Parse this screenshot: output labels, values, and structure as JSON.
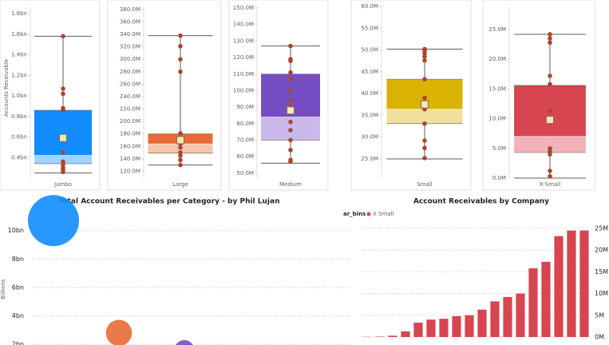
{
  "chart_data": [
    {
      "type": "box",
      "category": "Jumbo",
      "ylabel": "Accounts Receivable",
      "color": "#118dff",
      "light_color": "#a3d2ff",
      "ylim": [
        0.2,
        1.87
      ],
      "yticks": [
        {
          "value": 0.4,
          "label": "0.4bn"
        },
        {
          "value": 0.6,
          "label": "0.6bn"
        },
        {
          "value": 0.8,
          "label": "0.8bn"
        },
        {
          "value": 1.0,
          "label": "1.0bn"
        },
        {
          "value": 1.2,
          "label": "1.2bn"
        },
        {
          "value": 1.4,
          "label": "1.4bn"
        },
        {
          "value": 1.6,
          "label": "1.6bn"
        },
        {
          "value": 1.8,
          "label": "1.8bn"
        }
      ],
      "whisker_low": 0.25,
      "q1": 0.34,
      "median": 0.42,
      "q3": 0.86,
      "whisker_high": 1.58,
      "mean": 0.59,
      "points": [
        1.58,
        1.07,
        1.02,
        0.88,
        0.86,
        0.6,
        0.45,
        0.36,
        0.33,
        0.3,
        0.28,
        0.26
      ]
    },
    {
      "type": "box",
      "category": "Large",
      "color": "#e66c37",
      "light_color": "#f6c4aa",
      "ylim": [
        109,
        385
      ],
      "yticks": [
        {
          "value": 120,
          "label": "120.0M"
        },
        {
          "value": 140,
          "label": "140.0M"
        },
        {
          "value": 160,
          "label": "160.0M"
        },
        {
          "value": 180,
          "label": "180.0M"
        },
        {
          "value": 200,
          "label": "200.0M"
        },
        {
          "value": 220,
          "label": "220.0M"
        },
        {
          "value": 240,
          "label": "240.0M"
        },
        {
          "value": 260,
          "label": "260.0M"
        },
        {
          "value": 280,
          "label": "280.0M"
        },
        {
          "value": 300,
          "label": "300.0M"
        },
        {
          "value": 320,
          "label": "320.0M"
        },
        {
          "value": 340,
          "label": "340.0M"
        },
        {
          "value": 360,
          "label": "360.0M"
        },
        {
          "value": 380,
          "label": "380.0M"
        }
      ],
      "whisker_low": 130,
      "q1": 149,
      "median": 164,
      "q3": 180,
      "whisker_high": 338,
      "mean": 170,
      "points": [
        338,
        321,
        300,
        280,
        181,
        170,
        164,
        158,
        150,
        145,
        138,
        130
      ]
    },
    {
      "type": "box",
      "category": "Medium",
      "color": "#744ec2",
      "light_color": "#c9b9ea",
      "ylim": [
        47,
        151
      ],
      "yticks": [
        {
          "value": 50,
          "label": "50.0M"
        },
        {
          "value": 60,
          "label": "60.0M"
        },
        {
          "value": 70,
          "label": "70.0M"
        },
        {
          "value": 80,
          "label": "80.0M"
        },
        {
          "value": 90,
          "label": "90.0M"
        },
        {
          "value": 100,
          "label": "100.0M"
        },
        {
          "value": 110,
          "label": "110.0M"
        },
        {
          "value": 120,
          "label": "120.0M"
        },
        {
          "value": 130,
          "label": "130.0M"
        },
        {
          "value": 140,
          "label": "140.0M"
        },
        {
          "value": 150,
          "label": "150.0M"
        }
      ],
      "whisker_low": 56,
      "q1": 70,
      "median": 84,
      "q3": 110,
      "whisker_high": 127,
      "mean": 88,
      "points": [
        127,
        119,
        118,
        111,
        107,
        100,
        94,
        90,
        88,
        81,
        76,
        70,
        64,
        58,
        57
      ]
    },
    {
      "type": "box",
      "category": "Small",
      "color": "#d9b300",
      "light_color": "#f0e09c",
      "ylim": [
        20.6,
        60
      ],
      "yticks": [
        {
          "value": 25,
          "label": "25.0M"
        },
        {
          "value": 30,
          "label": "30.0M"
        },
        {
          "value": 35,
          "label": "35.0M"
        },
        {
          "value": 40,
          "label": "40.0M"
        },
        {
          "value": 45,
          "label": "45.0M"
        },
        {
          "value": 50,
          "label": "50.0M"
        },
        {
          "value": 55,
          "label": "55.0M"
        },
        {
          "value": 60,
          "label": "60.0M"
        }
      ],
      "whisker_low": 25,
      "q1": 33.1,
      "median": 36.4,
      "q3": 43.3,
      "whisker_high": 50.2,
      "mean": 37.5,
      "points": [
        50.2,
        49.8,
        49.2,
        48.5,
        47.6,
        43.3,
        39.0,
        37.8,
        36.4,
        33.1,
        29.2,
        27.5,
        25.2
      ]
    },
    {
      "type": "box",
      "category": "X-Small",
      "color": "#d64550",
      "light_color": "#f1b3b8",
      "ylim": [
        0,
        28.9
      ],
      "yticks": [
        {
          "value": 0,
          "label": "0.0M"
        },
        {
          "value": 5,
          "label": "5.0M"
        },
        {
          "value": 10,
          "label": "10.0M"
        },
        {
          "value": 15,
          "label": "15.0M"
        },
        {
          "value": 20,
          "label": "20.0M"
        },
        {
          "value": 25,
          "label": "25.0M"
        }
      ],
      "whisker_low": 0,
      "q1": 4.3,
      "median": 7.0,
      "q3": 15.6,
      "whisker_high": 24.2,
      "mean": 9.8,
      "points": [
        24.2,
        23.5,
        22.8,
        17.2,
        15.8,
        11.3,
        9.8,
        5.0,
        4.5,
        4.0,
        1.2,
        0.3
      ]
    },
    {
      "type": "bubble",
      "title": "Total Account Receivables per Category - by Phil Lujan",
      "ylabel": "Billions",
      "categories": [
        null,
        null,
        null
      ],
      "values": [
        10.7,
        2.8,
        1.6
      ],
      "sizes": [
        10.7,
        2.8,
        1.6
      ],
      "colors": [
        "#118dff",
        "#e66c37",
        "#744ec2"
      ],
      "ylim": [
        1.5,
        11.5
      ],
      "yticks": [
        {
          "value": 2,
          "label": "2bn"
        },
        {
          "value": 4,
          "label": "4bn"
        },
        {
          "value": 6,
          "label": "6bn"
        },
        {
          "value": 8,
          "label": "8bn"
        },
        {
          "value": 10,
          "label": "10bn"
        }
      ],
      "grid": true
    },
    {
      "type": "bar",
      "title": "Account Receivables by Company",
      "legend_title": "ar_bins",
      "categories": [
        null,
        null,
        null,
        null,
        null,
        null,
        null,
        null,
        null,
        null,
        null,
        null,
        null,
        null,
        null,
        null,
        null,
        null
      ],
      "series": [
        {
          "name": "X Small",
          "color": "#d64550",
          "values": [
            0.05,
            0.1,
            0.3,
            1.3,
            3.3,
            4.0,
            4.2,
            4.8,
            5.0,
            6.3,
            8.2,
            9.2,
            10.0,
            15.8,
            17.3,
            23.2,
            24.5,
            24.5
          ]
        }
      ],
      "ylim": [
        0,
        27
      ],
      "yticks": [
        {
          "value": 0,
          "label": "0M"
        },
        {
          "value": 5,
          "label": "5M"
        },
        {
          "value": 10,
          "label": "10M"
        },
        {
          "value": 15,
          "label": "15M"
        },
        {
          "value": 20,
          "label": "20M"
        },
        {
          "value": 25,
          "label": "25M"
        }
      ],
      "grid": true,
      "axis_side": "right"
    }
  ]
}
